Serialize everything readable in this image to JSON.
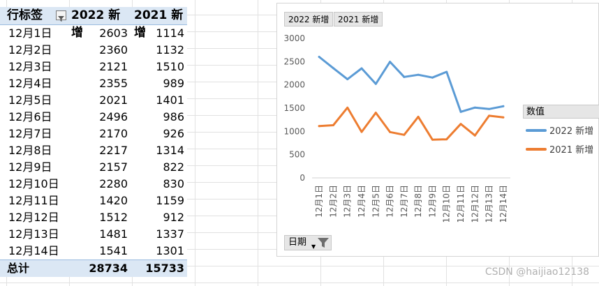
{
  "pivot": {
    "header": {
      "row_label": "行标签",
      "col_2022": "2022 新增",
      "col_2021": "2021 新增"
    },
    "rows": [
      {
        "date": "12月1日",
        "v2022": "2603",
        "v2021": "1114"
      },
      {
        "date": "12月2日",
        "v2022": "2360",
        "v2021": "1132"
      },
      {
        "date": "12月3日",
        "v2022": "2121",
        "v2021": "1510"
      },
      {
        "date": "12月4日",
        "v2022": "2355",
        "v2021": "989"
      },
      {
        "date": "12月5日",
        "v2022": "2021",
        "v2021": "1401"
      },
      {
        "date": "12月6日",
        "v2022": "2496",
        "v2021": "986"
      },
      {
        "date": "12月7日",
        "v2022": "2170",
        "v2021": "926"
      },
      {
        "date": "12月8日",
        "v2022": "2217",
        "v2021": "1314"
      },
      {
        "date": "12月9日",
        "v2022": "2157",
        "v2021": "822"
      },
      {
        "date": "12月10日",
        "v2022": "2280",
        "v2021": "830"
      },
      {
        "date": "12月11日",
        "v2022": "1420",
        "v2021": "1159"
      },
      {
        "date": "12月12日",
        "v2022": "1512",
        "v2021": "912"
      },
      {
        "date": "12月13日",
        "v2022": "1481",
        "v2021": "1337"
      },
      {
        "date": "12月14日",
        "v2022": "1541",
        "v2021": "1301"
      }
    ],
    "total": {
      "label": "总计",
      "v2022": "28734",
      "v2021": "15733"
    }
  },
  "chart": {
    "series_buttons": [
      "2022 新增",
      "2021 新增"
    ],
    "legend_title": "数值",
    "axis_button": "日期"
  },
  "chart_data": {
    "type": "line",
    "categories": [
      "12月1日",
      "12月2日",
      "12月3日",
      "12月4日",
      "12月5日",
      "12月6日",
      "12月7日",
      "12月8日",
      "12月9日",
      "12月10日",
      "12月11日",
      "12月12日",
      "12月13日",
      "12月14日"
    ],
    "series": [
      {
        "name": "2022 新增",
        "color": "#5b9bd5",
        "values": [
          2603,
          2360,
          2121,
          2355,
          2021,
          2496,
          2170,
          2217,
          2157,
          2280,
          1420,
          1512,
          1481,
          1541
        ]
      },
      {
        "name": "2021 新增",
        "color": "#ed7d31",
        "values": [
          1114,
          1132,
          1510,
          989,
          1401,
          986,
          926,
          1314,
          822,
          830,
          1159,
          912,
          1337,
          1301
        ]
      }
    ],
    "ylim": [
      0,
      3000
    ],
    "yticks": [
      0,
      500,
      1000,
      1500,
      2000,
      2500,
      3000
    ],
    "legend": "right"
  },
  "watermark": "CSDN @haijiao12138"
}
